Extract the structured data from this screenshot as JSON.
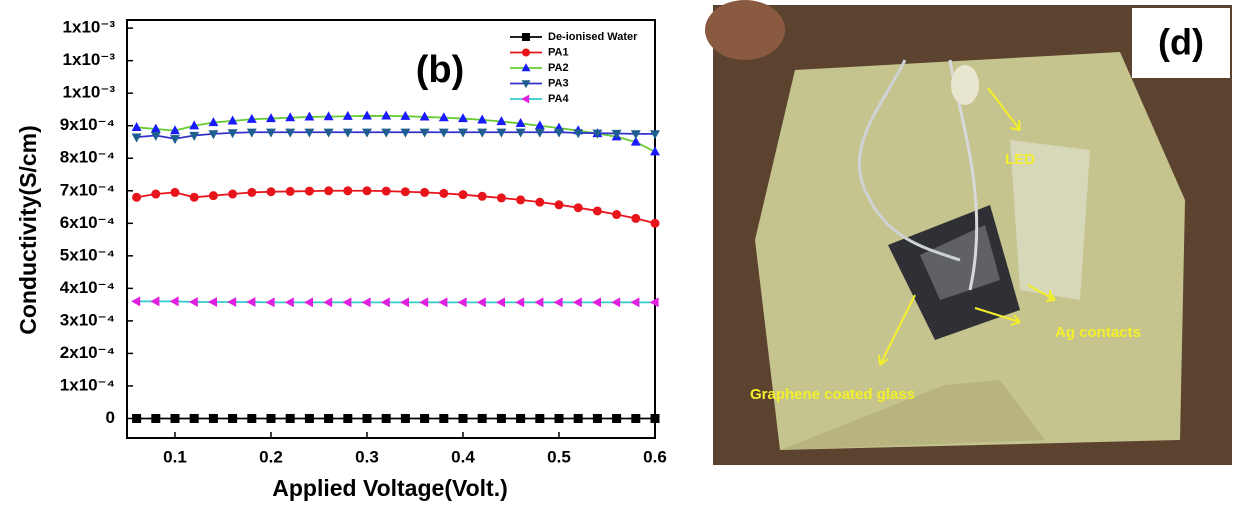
{
  "chart_data": {
    "type": "line",
    "annotation": "(b)",
    "x_label": "Applied Voltage(Volt.)",
    "y_label": "Conductivity(S/cm)",
    "x": [
      0.06,
      0.08,
      0.1,
      0.12,
      0.14,
      0.16,
      0.18,
      0.2,
      0.22,
      0.24,
      0.26,
      0.28,
      0.3,
      0.32,
      0.34,
      0.36,
      0.38,
      0.4,
      0.42,
      0.44,
      0.46,
      0.48,
      0.5,
      0.52,
      0.54,
      0.56,
      0.58,
      0.6
    ],
    "xlim": [
      0.05,
      0.6
    ],
    "xticks": [
      0.1,
      0.2,
      0.3,
      0.4,
      0.5,
      0.6
    ],
    "ylim": [
      -6e-05,
      0.001225
    ],
    "yticks": [
      0,
      {
        "value": 0.0001,
        "label": "1x10⁻⁴"
      },
      {
        "value": 0.0002,
        "label": "2x10⁻⁴"
      },
      {
        "value": 0.0003,
        "label": "3x10⁻⁴"
      },
      {
        "value": 0.0004,
        "label": "4x10⁻⁴"
      },
      {
        "value": 0.0005,
        "label": "5x10⁻⁴"
      },
      {
        "value": 0.0006,
        "label": "6x10⁻⁴"
      },
      {
        "value": 0.0007,
        "label": "7x10⁻⁴"
      },
      {
        "value": 0.0008,
        "label": "8x10⁻⁴"
      },
      {
        "value": 0.0009,
        "label": "9x10⁻⁴"
      },
      {
        "value": 0.001,
        "label": "1x10⁻³"
      },
      {
        "value": 0.0011,
        "label": "1x10⁻³"
      },
      {
        "value": 0.0012,
        "label": "1x10⁻³"
      }
    ],
    "legend": "upper right",
    "series": [
      {
        "name": "De-ionised Water",
        "color": "#000000",
        "line_color": "#000000",
        "marker": "square",
        "values": [
          0,
          0,
          0,
          0,
          0,
          0,
          0,
          0,
          0,
          0,
          0,
          0,
          0,
          0,
          0,
          0,
          0,
          0,
          0,
          0,
          0,
          0,
          0,
          0,
          0,
          0,
          0,
          0
        ]
      },
      {
        "name": "PA1",
        "color": "#e8141b",
        "line_color": "#e8141b",
        "marker": "circle",
        "values": [
          0.00068,
          0.00069,
          0.000695,
          0.00068,
          0.000685,
          0.00069,
          0.000695,
          0.000697,
          0.000698,
          0.000699,
          0.0007,
          0.0007,
          0.0007,
          0.000699,
          0.000697,
          0.000695,
          0.000692,
          0.000688,
          0.000683,
          0.000678,
          0.000672,
          0.000665,
          0.000657,
          0.000648,
          0.000638,
          0.000627,
          0.000615,
          0.0006
        ]
      },
      {
        "name": "PA2",
        "color": "#1a1aff",
        "line_color": "#66cc33",
        "marker": "triangle-up",
        "values": [
          0.000895,
          0.00089,
          0.000885,
          0.0009,
          0.00091,
          0.000915,
          0.00092,
          0.000922,
          0.000925,
          0.000927,
          0.000928,
          0.000929,
          0.00093,
          0.00093,
          0.000929,
          0.000927,
          0.000925,
          0.000922,
          0.000918,
          0.000913,
          0.000907,
          0.0009,
          0.000893,
          0.000885,
          0.000876,
          0.000866,
          0.00085,
          0.00082
        ]
      },
      {
        "name": "PA3",
        "color": "#1f5f8f",
        "line_color": "#3333cc",
        "marker": "triangle-down",
        "values": [
          0.000865,
          0.00087,
          0.00086,
          0.00087,
          0.000875,
          0.000878,
          0.00088,
          0.00088,
          0.00088,
          0.00088,
          0.00088,
          0.00088,
          0.00088,
          0.00088,
          0.00088,
          0.00088,
          0.00088,
          0.00088,
          0.00088,
          0.00088,
          0.00088,
          0.00088,
          0.00088,
          0.000878,
          0.000877,
          0.000876,
          0.000875,
          0.000875
        ]
      },
      {
        "name": "PA4",
        "color": "#e020e0",
        "line_color": "#33cccc",
        "marker": "triangle-left",
        "values": [
          0.00036,
          0.00036,
          0.00036,
          0.000358,
          0.000358,
          0.000358,
          0.000358,
          0.000357,
          0.000357,
          0.000357,
          0.000357,
          0.000357,
          0.000357,
          0.000357,
          0.000357,
          0.000357,
          0.000357,
          0.000357,
          0.000357,
          0.000357,
          0.000357,
          0.000357,
          0.000357,
          0.000357,
          0.000357,
          0.000357,
          0.000357,
          0.000357
        ]
      }
    ]
  },
  "photo": {
    "panel_label": "(d)",
    "led_label": "LED",
    "contacts_label": "Ag contacts",
    "glass_label": "Graphene coated glass"
  }
}
